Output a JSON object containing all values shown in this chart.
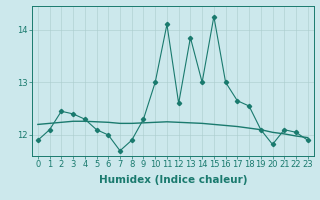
{
  "xlabel": "Humidex (Indice chaleur)",
  "ylabel": "",
  "background_color": "#cce8ec",
  "grid_color": "#aacccc",
  "line_color": "#1a7a6e",
  "x": [
    0,
    1,
    2,
    3,
    4,
    5,
    6,
    7,
    8,
    9,
    10,
    11,
    12,
    13,
    14,
    15,
    16,
    17,
    18,
    19,
    20,
    21,
    22,
    23
  ],
  "y_data": [
    11.9,
    12.1,
    12.45,
    12.4,
    12.3,
    12.1,
    12.0,
    11.7,
    11.9,
    12.3,
    13.0,
    14.1,
    12.6,
    13.85,
    13.0,
    14.25,
    13.0,
    12.65,
    12.55,
    12.1,
    11.82,
    12.1,
    12.05,
    11.9
  ],
  "y_trend": [
    12.2,
    12.22,
    12.24,
    12.26,
    12.26,
    12.25,
    12.24,
    12.22,
    12.22,
    12.23,
    12.24,
    12.25,
    12.24,
    12.23,
    12.22,
    12.2,
    12.18,
    12.16,
    12.13,
    12.1,
    12.05,
    12.02,
    11.98,
    11.95
  ],
  "ylim": [
    11.6,
    14.45
  ],
  "yticks": [
    12,
    13,
    14
  ],
  "xticks": [
    0,
    1,
    2,
    3,
    4,
    5,
    6,
    7,
    8,
    9,
    10,
    11,
    12,
    13,
    14,
    15,
    16,
    17,
    18,
    19,
    20,
    21,
    22,
    23
  ],
  "tick_fontsize": 6,
  "xlabel_fontsize": 7.5
}
